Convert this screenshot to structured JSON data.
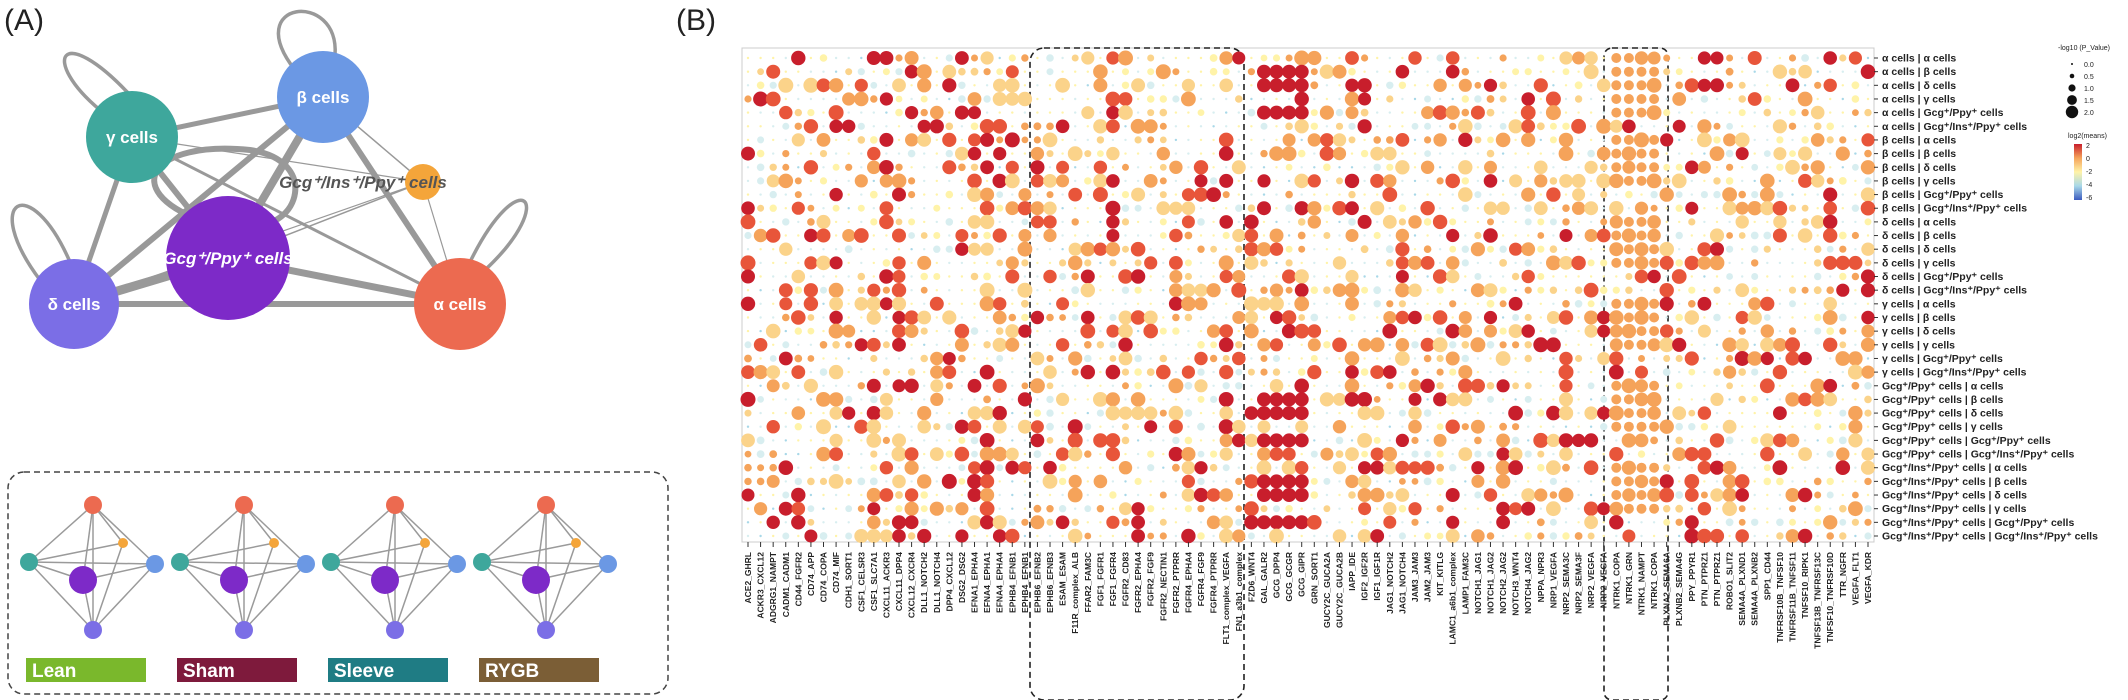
{
  "panel_labels": {
    "a": "(A)",
    "b": "(B)"
  },
  "network": {
    "nodes": [
      {
        "id": "beta",
        "label": "β cells",
        "color": "#6b98e4"
      },
      {
        "id": "gamma",
        "label": "γ cells",
        "color": "#3ea79c"
      },
      {
        "id": "gip",
        "label": "Gcg⁺/Ins⁺/Ppy⁺ cells",
        "color": "#f4a53a"
      },
      {
        "id": "gp",
        "label": "Gcg⁺/Ppy⁺ cells",
        "color": "#7d2ac8"
      },
      {
        "id": "delta",
        "label": "δ cells",
        "color": "#7b6ee6"
      },
      {
        "id": "alpha",
        "label": "α cells",
        "color": "#ec6a50"
      }
    ]
  },
  "mini_networks": [
    {
      "label": "Lean",
      "color": "#7ab82c"
    },
    {
      "label": "Sham",
      "color": "#7e1a3c"
    },
    {
      "label": "Sleeve",
      "color": "#1f7c84"
    },
    {
      "label": "RYGB",
      "color": "#7b5e36"
    }
  ],
  "dotplot": {
    "rows": [
      "α cells | α cells",
      "α cells | β cells",
      "α cells | δ cells",
      "α cells | γ cells",
      "α cells | Gcg⁺/Ppy⁺ cells",
      "α cells | Gcg⁺/Ins⁺/Ppy⁺ cells",
      "β cells | α cells",
      "β cells | β cells",
      "β cells | δ cells",
      "β cells | γ cells",
      "β cells | Gcg⁺/Ppy⁺ cells",
      "β cells | Gcg⁺/Ins⁺/Ppy⁺ cells",
      "δ cells | α cells",
      "δ cells | β cells",
      "δ cells | δ cells",
      "δ cells | γ cells",
      "δ cells | Gcg⁺/Ppy⁺ cells",
      "δ cells | Gcg⁺/Ins⁺/Ppy⁺ cells",
      "γ cells | α cells",
      "γ cells | β cells",
      "γ cells | δ cells",
      "γ cells | γ cells",
      "γ cells | Gcg⁺/Ppy⁺ cells",
      "γ cells | Gcg⁺/Ins⁺/Ppy⁺ cells",
      "Gcg⁺/Ppy⁺ cells | α cells",
      "Gcg⁺/Ppy⁺ cells | β cells",
      "Gcg⁺/Ppy⁺ cells | δ cells",
      "Gcg⁺/Ppy⁺ cells | γ cells",
      "Gcg⁺/Ppy⁺ cells | Gcg⁺/Ppy⁺ cells",
      "Gcg⁺/Ppy⁺ cells | Gcg⁺/Ins⁺/Ppy⁺ cells",
      "Gcg⁺/Ins⁺/Ppy⁺ cells | α cells",
      "Gcg⁺/Ins⁺/Ppy⁺ cells | β cells",
      "Gcg⁺/Ins⁺/Ppy⁺ cells | δ cells",
      "Gcg⁺/Ins⁺/Ppy⁺ cells | γ cells",
      "Gcg⁺/Ins⁺/Ppy⁺ cells | Gcg⁺/Ppy⁺ cells",
      "Gcg⁺/Ins⁺/Ppy⁺ cells | Gcg⁺/Ins⁺/Ppy⁺ cells"
    ],
    "columns": [
      "ACE2_GHRL",
      "ACKR3_CXCL12",
      "ADGRG1_NAMPT",
      "CADM1_CADM1",
      "CD44_FGFR2",
      "CD74_APP",
      "CD74_COPA",
      "CD74_MIF",
      "CDH1_SORT1",
      "CSF1_CELSR3",
      "CSF1_SLC7A1",
      "CXCL11_ACKR3",
      "CXCL11_DPP4",
      "CXCL12_CXCR4",
      "DLL1_NOTCH2",
      "DLL1_NOTCH4",
      "DPP4_CXCL12",
      "DSG2_DSG2",
      "EFNA1_EPHA4",
      "EFNA4_EPHA1",
      "EFNA4_EPHA4",
      "EPHB4_EFNB1",
      "EPHB4_EFNB1",
      "EPHB6_EFNB2",
      "EPHB6_EFNB3",
      "ESAM_ESAM",
      "F11R_complex_ALB",
      "FFAR2_FAM3C",
      "FGF1_FGFR1",
      "FGF1_FGFR4",
      "FGFR2_CD83",
      "FGFR2_EPHA4",
      "FGFR2_FGF9",
      "FGFR2_NECTIN1",
      "FGFR2_PTPRR",
      "FGFR4_EPHA4",
      "FGFR4_FGF9",
      "FGFR4_PTPRR",
      "FLT1_complex_VEGFA",
      "FN1_a3b1_complex",
      "FZD6_WNT4",
      "GAL_GALR2",
      "GCG_DPP4",
      "GCG_GCGR",
      "GCG_GIPR",
      "GRN_SORT1",
      "GUCY2C_GUCA2A",
      "GUCY2C_GUCA2B",
      "IAPP_IDE",
      "IGF2_IGF2R",
      "IGF1_IGF1R",
      "JAG1_NOTCH2",
      "JAG1_NOTCH4",
      "JAM3_JAM3",
      "JAM2_JAM3",
      "KIT_KITLG",
      "LAMC1_a6b1_complex",
      "LAMP1_FAM3C",
      "NOTCH1_JAG1",
      "NOTCH1_JAG2",
      "NOTCH2_JAG2",
      "NOTCH3_WNT4",
      "NOTCH4_JAG2",
      "NPPA_NPR3",
      "NRP1_VEGFA",
      "NRP2_SEMA3C",
      "NRP2_SEMA3F",
      "NRP2_VEGFA",
      "NRP2_VEGFA",
      "NTRK1_COPA",
      "NTRK1_GRN",
      "NTRK1_NAMPT",
      "NTRK1_COPA",
      "PLXNA2_SEMA6A",
      "PLXNB2_SEMA4G",
      "PPY_PPYR1",
      "PTN_PTPRZ1",
      "PTN_PTPRZ1",
      "ROBO1_SLIT2",
      "SEMA4A_PLXND1",
      "SEMA4A_PLXNB2",
      "SPP1_CD44",
      "TNFRSF10B_TNFSF10",
      "TNFRSF11B_TNFSF11",
      "TNFSF10_RIPK1",
      "TNFSF13B_TNFRSF13C",
      "TNFSF10_TNFRSF10D",
      "TTR_NGFR",
      "VEGFA_FLT1",
      "VEGFA_KDR"
    ],
    "legend": {
      "size_title": "-log10 (P_Value)",
      "size_values": [
        "0.0",
        "0.5",
        "1.0",
        "1.5",
        "2.0"
      ],
      "color_title": "log2(means)",
      "color_ticks": [
        "2",
        "0",
        "-2",
        "-4",
        "-6"
      ]
    }
  }
}
